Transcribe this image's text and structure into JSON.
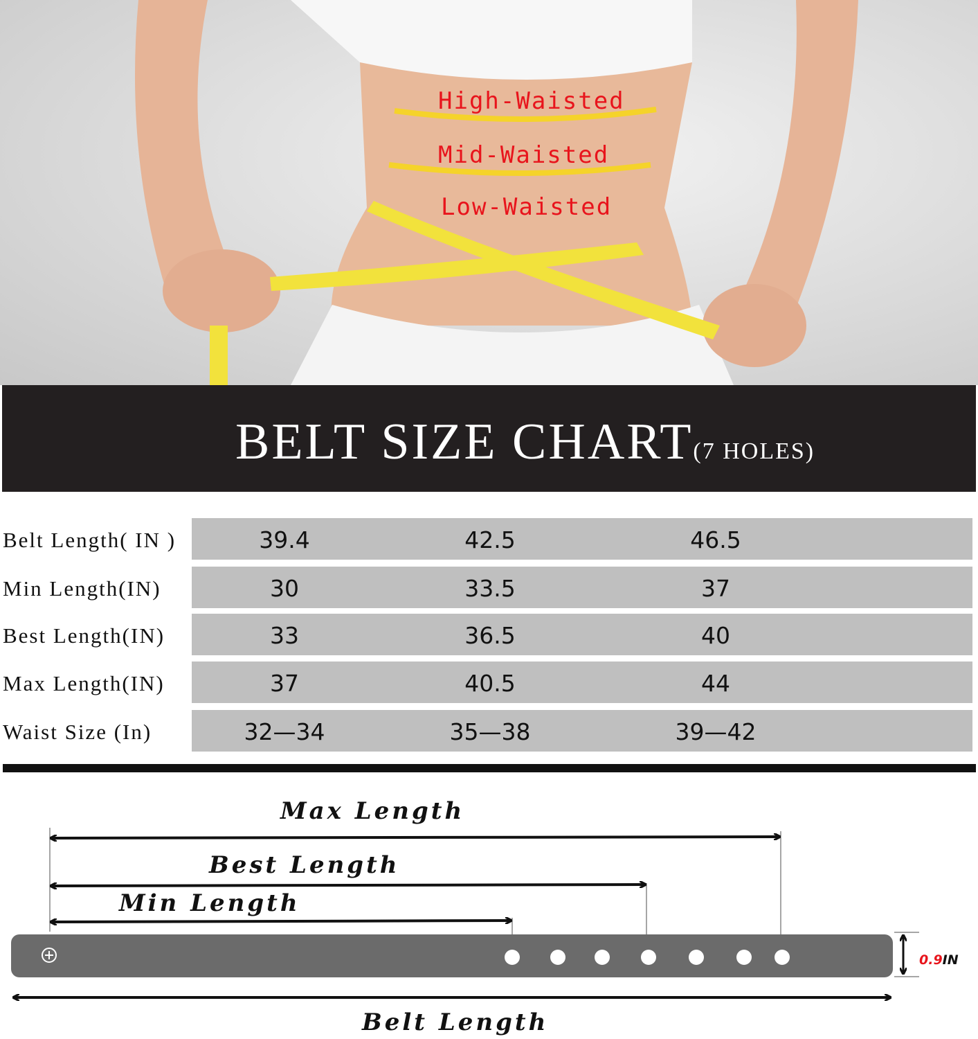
{
  "photo": {
    "waist_labels": [
      "High-Waisted",
      "Mid-Waisted",
      "Low-Waisted"
    ],
    "label_color": "#e8141c",
    "line_color": "#f5d32a"
  },
  "header": {
    "title": "BELT SIZE CHART",
    "subtitle": "(7 HOLES)"
  },
  "table": {
    "rows": [
      {
        "label": "Belt Length( IN )",
        "values": [
          "39.4",
          "42.5",
          "46.5"
        ]
      },
      {
        "label": "Min Length(IN)",
        "values": [
          "30",
          "33.5",
          "37"
        ]
      },
      {
        "label": "Best Length(IN)",
        "values": [
          "33",
          "36.5",
          "40"
        ]
      },
      {
        "label": "Max Length(IN)",
        "values": [
          "37",
          "40.5",
          "44"
        ]
      },
      {
        "label": "Waist Size (In)",
        "values": [
          "32—34",
          "35—38",
          "39—42"
        ]
      }
    ]
  },
  "diagram": {
    "max_label": "Max Length",
    "best_label": "Best Length",
    "min_label": "Min Length",
    "belt_label": "Belt Length",
    "width_value": "0.9",
    "width_unit": "IN",
    "hole_count": 7,
    "belt_color": "#6b6b6b"
  }
}
